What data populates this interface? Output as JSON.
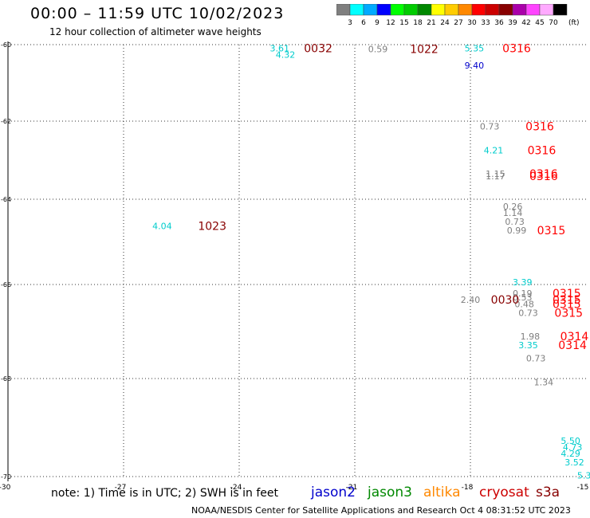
{
  "title": "00:00 – 11:59 UTC 10/02/2023",
  "subtitle": "12 hour collection of altimeter wave heights",
  "colorbar": {
    "unit": "(ft)",
    "ticks": [
      "3",
      "6",
      "9",
      "12",
      "15",
      "18",
      "21",
      "24",
      "27",
      "30",
      "33",
      "36",
      "39",
      "42",
      "45",
      "70"
    ],
    "colors": [
      "#7f7f7f",
      "#00ffff",
      "#00aaff",
      "#0000ff",
      "#00ff00",
      "#00cc00",
      "#008800",
      "#ffff00",
      "#ffcc00",
      "#ff8800",
      "#ff0000",
      "#cc0000",
      "#880000",
      "#aa00aa",
      "#ff44ff",
      "#ffaaff",
      "#000000"
    ]
  },
  "map": {
    "lon_range": [
      -30,
      -15
    ],
    "lat_range": [
      -70,
      -60
    ],
    "x_ticks": [
      "-27",
      "-24",
      "-21",
      "-18",
      "-15"
    ],
    "x_corner_label": "-30",
    "y_ticks": [
      "-60",
      "-62",
      "-64",
      "-66",
      "-68",
      "-70"
    ]
  },
  "observations": [
    {
      "lon": -22.95,
      "lat": -60.1,
      "text": "3.61",
      "color": "#00cccc",
      "size": 11
    },
    {
      "lon": -22.8,
      "lat": -60.25,
      "text": "4.32",
      "color": "#00cccc",
      "size": 11
    },
    {
      "lon": -21.95,
      "lat": -60.1,
      "text": "0032",
      "color": "#880000",
      "size": 14
    },
    {
      "lon": -20.4,
      "lat": -60.12,
      "text": "0.59",
      "color": "#7f7f7f",
      "size": 11
    },
    {
      "lon": -19.2,
      "lat": -60.12,
      "text": "1022",
      "color": "#880000",
      "size": 14
    },
    {
      "lon": -17.9,
      "lat": -60.1,
      "text": "5.35",
      "color": "#00cccc",
      "size": 11
    },
    {
      "lon": -16.8,
      "lat": -60.1,
      "text": "0316",
      "color": "#ff0000",
      "size": 14
    },
    {
      "lon": -17.9,
      "lat": -60.5,
      "text": "9.40",
      "color": "#0000cc",
      "size": 11
    },
    {
      "lon": -17.5,
      "lat": -61.9,
      "text": "0.73",
      "color": "#7f7f7f",
      "size": 11
    },
    {
      "lon": -16.2,
      "lat": -61.9,
      "text": "0316",
      "color": "#ff0000",
      "size": 14
    },
    {
      "lon": -17.4,
      "lat": -62.45,
      "text": "4.21",
      "color": "#00cccc",
      "size": 11
    },
    {
      "lon": -16.15,
      "lat": -62.45,
      "text": "0316",
      "color": "#ff0000",
      "size": 14
    },
    {
      "lon": -17.35,
      "lat": -63.0,
      "text": "1.15",
      "color": "#7f7f7f",
      "size": 11
    },
    {
      "lon": -17.35,
      "lat": -63.05,
      "text": "1.17",
      "color": "#7f7f7f",
      "size": 11
    },
    {
      "lon": -16.1,
      "lat": -63.0,
      "text": "0316",
      "color": "#ff0000",
      "size": 14
    },
    {
      "lon": -16.1,
      "lat": -63.05,
      "text": "0316",
      "color": "#ff0000",
      "size": 14
    },
    {
      "lon": -16.9,
      "lat": -63.75,
      "text": "0.26",
      "color": "#7f7f7f",
      "size": 11
    },
    {
      "lon": -16.9,
      "lat": -63.9,
      "text": "1.14",
      "color": "#7f7f7f",
      "size": 11
    },
    {
      "lon": -16.85,
      "lat": -64.1,
      "text": "0.73",
      "color": "#7f7f7f",
      "size": 11
    },
    {
      "lon": -16.8,
      "lat": -64.3,
      "text": "0.99",
      "color": "#7f7f7f",
      "size": 11
    },
    {
      "lon": -15.9,
      "lat": -64.3,
      "text": "0315",
      "color": "#ff0000",
      "size": 14
    },
    {
      "lon": -26.0,
      "lat": -64.2,
      "text": "4.04",
      "color": "#00cccc",
      "size": 11
    },
    {
      "lon": -24.7,
      "lat": -64.2,
      "text": "1023",
      "color": "#880000",
      "size": 14
    },
    {
      "lon": -16.65,
      "lat": -65.5,
      "text": "3.39",
      "color": "#00cccc",
      "size": 11
    },
    {
      "lon": -16.65,
      "lat": -65.75,
      "text": "0.19",
      "color": "#7f7f7f",
      "size": 11
    },
    {
      "lon": -16.65,
      "lat": -65.85,
      "text": "0.53",
      "color": "#7f7f7f",
      "size": 11
    },
    {
      "lon": -16.6,
      "lat": -66.0,
      "text": "0.48",
      "color": "#7f7f7f",
      "size": 11
    },
    {
      "lon": -15.5,
      "lat": -65.75,
      "text": "0315",
      "color": "#ff0000",
      "size": 14
    },
    {
      "lon": -15.5,
      "lat": -65.9,
      "text": "0315",
      "color": "#ff0000",
      "size": 14
    },
    {
      "lon": -15.5,
      "lat": -66.0,
      "text": "0315",
      "color": "#ff0000",
      "size": 14
    },
    {
      "lon": -18.0,
      "lat": -65.9,
      "text": "2.40",
      "color": "#7f7f7f",
      "size": 11
    },
    {
      "lon": -17.1,
      "lat": -65.9,
      "text": "0030",
      "color": "#880000",
      "size": 14
    },
    {
      "lon": -16.5,
      "lat": -66.2,
      "text": "0.73",
      "color": "#7f7f7f",
      "size": 11
    },
    {
      "lon": -15.45,
      "lat": -66.2,
      "text": "0315",
      "color": "#ff0000",
      "size": 14
    },
    {
      "lon": -16.45,
      "lat": -66.75,
      "text": "1.98",
      "color": "#7f7f7f",
      "size": 11
    },
    {
      "lon": -15.3,
      "lat": -66.75,
      "text": "0314",
      "color": "#ff0000",
      "size": 14
    },
    {
      "lon": -16.5,
      "lat": -66.95,
      "text": "3.35",
      "color": "#00cccc",
      "size": 11
    },
    {
      "lon": -15.35,
      "lat": -66.95,
      "text": "0314",
      "color": "#ff0000",
      "size": 14
    },
    {
      "lon": -16.3,
      "lat": -67.25,
      "text": "0.73",
      "color": "#7f7f7f",
      "size": 11
    },
    {
      "lon": -16.1,
      "lat": -67.8,
      "text": "1.34",
      "color": "#7f7f7f",
      "size": 11
    },
    {
      "lon": -15.4,
      "lat": -69.15,
      "text": "5.50",
      "color": "#00cccc",
      "size": 11
    },
    {
      "lon": -15.35,
      "lat": -69.3,
      "text": "4.73",
      "color": "#00cccc",
      "size": 11
    },
    {
      "lon": -15.4,
      "lat": -69.45,
      "text": "4.29",
      "color": "#00cccc",
      "size": 11
    },
    {
      "lon": -15.3,
      "lat": -69.65,
      "text": "3.52",
      "color": "#00cccc",
      "size": 11
    },
    {
      "lon": -15.05,
      "lat": -69.95,
      "text": "5.3",
      "color": "#00cccc",
      "size": 11
    }
  ],
  "note": "note: 1) Time is in UTC; 2) SWH is in feet",
  "satellites": [
    {
      "name": "jason2",
      "color": "#0000cc"
    },
    {
      "name": "jason3",
      "color": "#008800"
    },
    {
      "name": "altika",
      "color": "#ff8800"
    },
    {
      "name": "cryosat",
      "color": "#cc0000"
    },
    {
      "name": "s3a",
      "color": "#880000"
    }
  ],
  "credit": "NOAA/NESDIS Center for Satellite Applications and Research    Oct  4 08:31:52 UTC 2023"
}
